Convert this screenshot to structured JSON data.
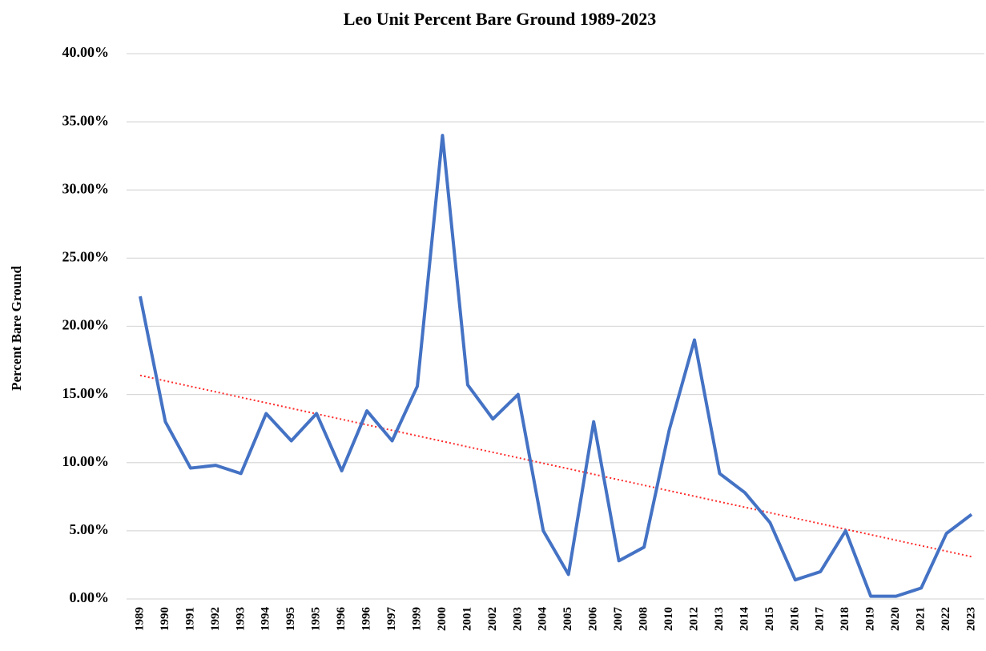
{
  "chart_data": {
    "type": "line",
    "title": "Leo Unit Percent Bare Ground 1989-2023",
    "y_label": "Percent Bare Ground",
    "categories": [
      "1989",
      "1990",
      "1991",
      "1992",
      "1993",
      "1994",
      "1995",
      "1995",
      "1996",
      "1996",
      "1997",
      "1999",
      "2000",
      "2001",
      "2002",
      "2003",
      "2004",
      "2005",
      "2006",
      "2007",
      "2008",
      "2010",
      "2012",
      "2013",
      "2014",
      "2015",
      "2016",
      "2017",
      "2018",
      "2019",
      "2020",
      "2021",
      "2022",
      "2023"
    ],
    "series": [
      {
        "color": "#4472c4",
        "values": [
          22.2,
          13.0,
          9.6,
          9.8,
          9.2,
          13.6,
          11.6,
          13.6,
          9.4,
          13.8,
          11.6,
          15.6,
          34.0,
          15.7,
          13.2,
          15.0,
          5.0,
          1.8,
          13.0,
          2.8,
          3.8,
          12.4,
          19.0,
          9.2,
          7.8,
          5.6,
          1.4,
          2.0,
          5.0,
          0.2,
          0.2,
          0.8,
          4.8,
          6.2
        ]
      }
    ],
    "trendline": {
      "values": [
        16.4,
        3.1
      ],
      "color": "#ff2a2a"
    },
    "ylim": [
      0,
      40
    ],
    "yticks": [
      {
        "value": 0,
        "label": "0.00%"
      },
      {
        "value": 5,
        "label": "5.00%"
      },
      {
        "value": 10,
        "label": "10.00%"
      },
      {
        "value": 15,
        "label": "15.00%"
      },
      {
        "value": 20,
        "label": "20.00%"
      },
      {
        "value": 25,
        "label": "25.00%"
      },
      {
        "value": 30,
        "label": "30.00%"
      },
      {
        "value": 35,
        "label": "35.00%"
      },
      {
        "value": 40,
        "label": "40.00%"
      }
    ],
    "grid": true
  }
}
